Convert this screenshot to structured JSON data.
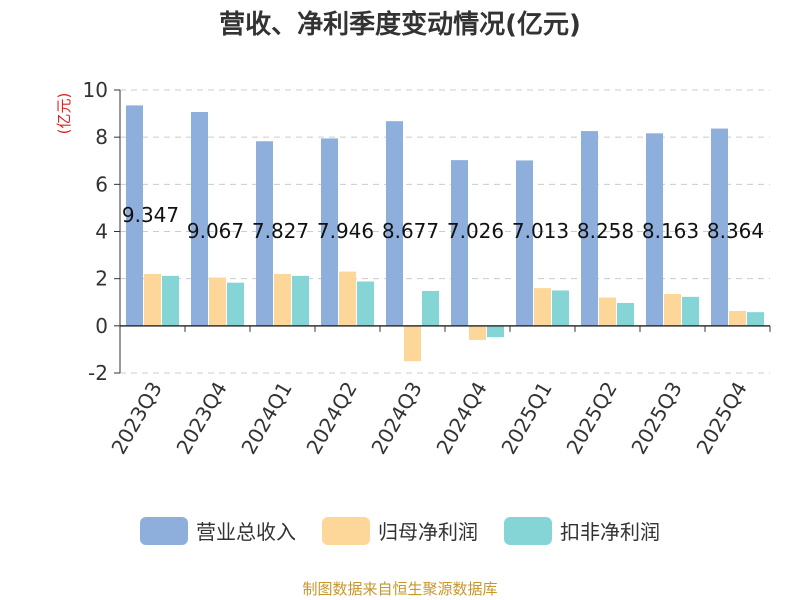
{
  "chart_data": {
    "type": "bar",
    "title": "营收、净利季度变动情况(亿元)",
    "ylabel": "(亿元)",
    "xlabel": "",
    "ylim": [
      -2,
      10
    ],
    "yticks": [
      "-2",
      "0",
      "2",
      "4",
      "6",
      "8",
      "10"
    ],
    "grid": true,
    "legend_position": "bottom",
    "categories": [
      "2023Q3",
      "2023Q4",
      "2024Q1",
      "2024Q2",
      "2024Q3",
      "2024Q4",
      "2025Q1",
      "2025Q2",
      "2025Q3",
      "2025Q4"
    ],
    "series": [
      {
        "name": "营业总收入",
        "color": "#8eaedb",
        "values": [
          9.347,
          9.067,
          7.827,
          7.946,
          8.677,
          7.026,
          7.013,
          8.258,
          8.163,
          8.364
        ]
      },
      {
        "name": "归母净利润",
        "color": "#fdd79a",
        "values": [
          2.2,
          2.05,
          2.2,
          2.3,
          -1.5,
          -0.6,
          1.6,
          1.2,
          1.35,
          0.63
        ]
      },
      {
        "name": "扣非净利润",
        "color": "#86d5d6",
        "values": [
          2.12,
          1.83,
          2.12,
          1.88,
          1.48,
          -0.48,
          1.5,
          0.97,
          1.23,
          0.58
        ]
      }
    ],
    "data_labels": [
      "9.347",
      "9.067",
      "7.827",
      "7.946",
      "8.677",
      "7.026",
      "7.013",
      "8.258",
      "8.163",
      "8.364"
    ]
  },
  "source": "制图数据来自恒生聚源数据库"
}
